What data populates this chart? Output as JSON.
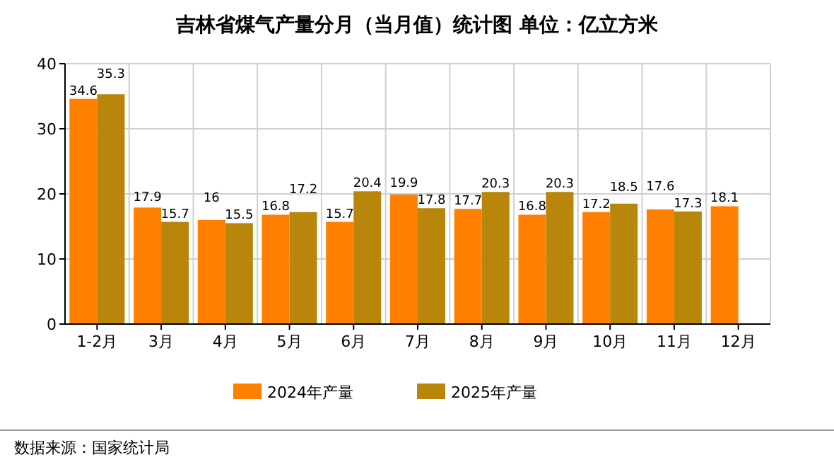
{
  "chart_data": {
    "type": "bar",
    "title": "吉林省煤气产量分月（当月值）统计图 单位：亿立方米",
    "categories": [
      "1-2月",
      "3月",
      "4月",
      "5月",
      "6月",
      "7月",
      "8月",
      "9月",
      "10月",
      "11月",
      "12月"
    ],
    "series": [
      {
        "name": "2024年产量",
        "color": "#ff8000",
        "values": [
          34.6,
          17.9,
          16,
          16.8,
          15.7,
          19.9,
          17.7,
          16.8,
          17.2,
          17.6,
          18.1
        ]
      },
      {
        "name": "2025年产量",
        "color": "#b8860b",
        "values": [
          35.3,
          15.7,
          15.5,
          17.2,
          20.4,
          17.8,
          20.3,
          20.3,
          18.5,
          17.3,
          null
        ]
      }
    ],
    "ylim": [
      0,
      40
    ],
    "yticks": [
      0,
      10,
      20,
      30,
      40
    ],
    "grid": true,
    "legend": "bottom",
    "data_labels": true,
    "annotations": [
      "数据来源：国家统计局"
    ]
  }
}
